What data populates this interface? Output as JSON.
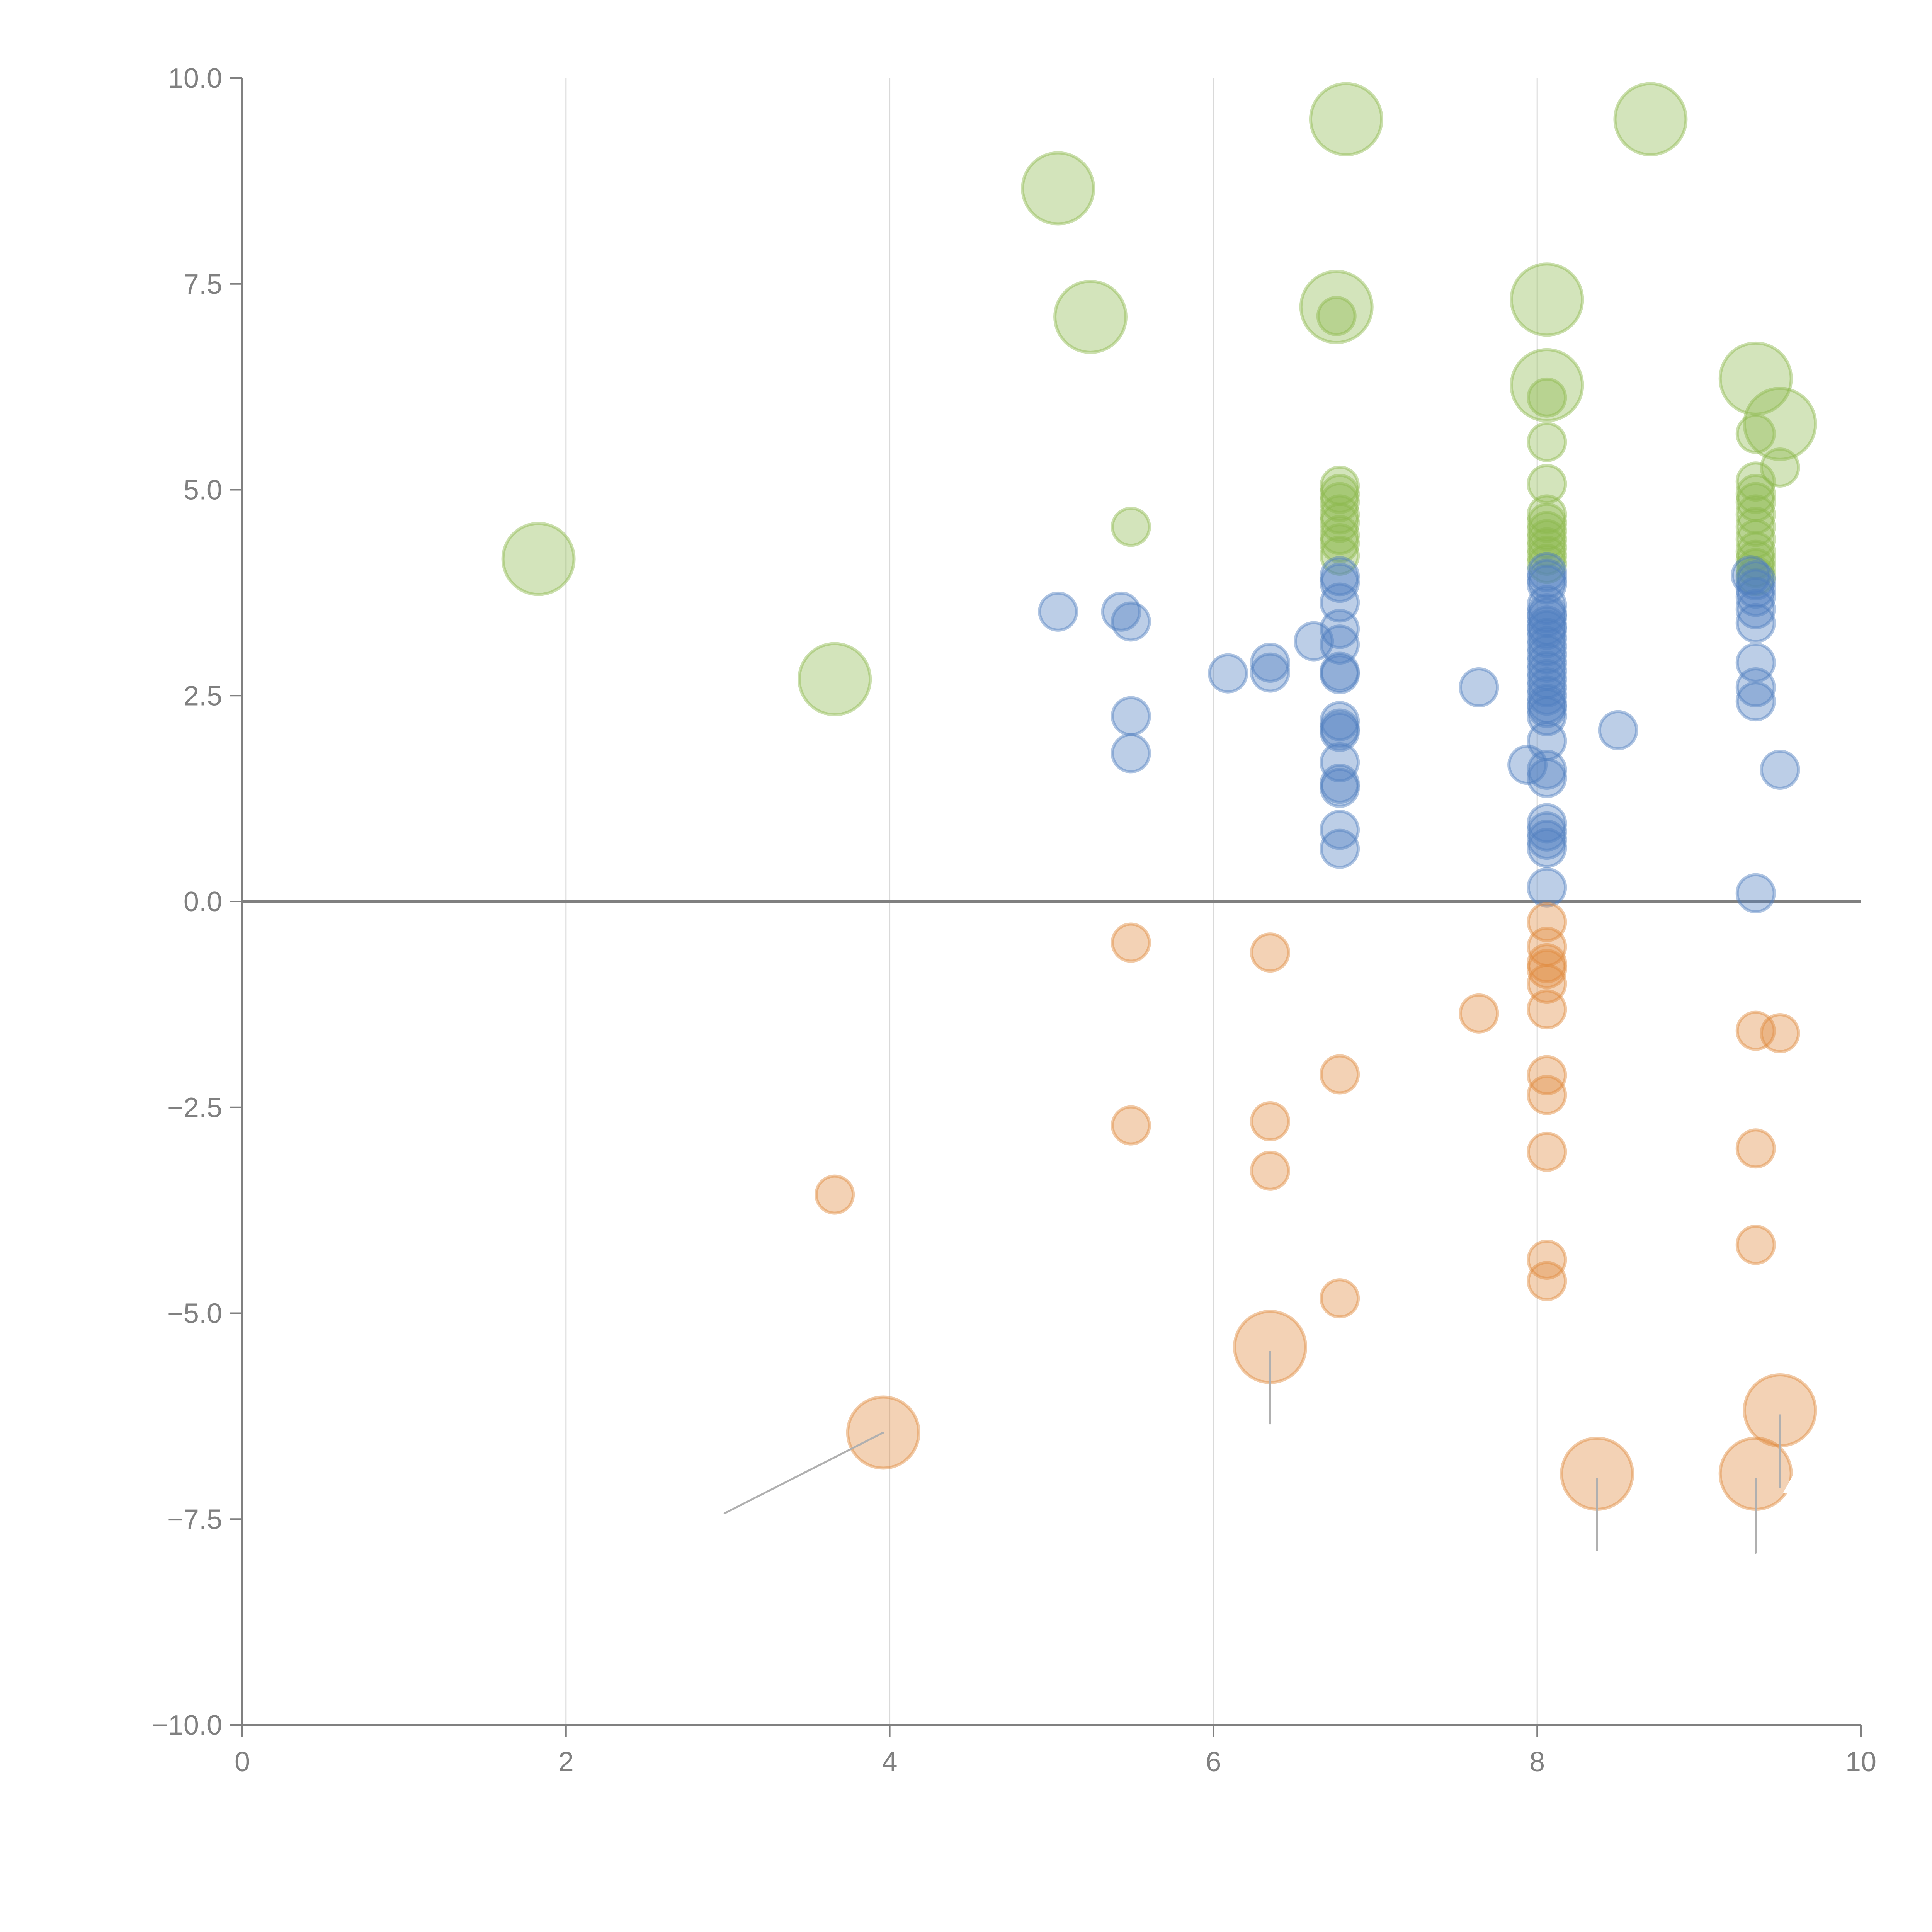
{
  "chart_data": {
    "type": "scatter",
    "title": "",
    "xlabel": "",
    "ylabel": "",
    "xlim": [
      0,
      10
    ],
    "ylim": [
      -10,
      10
    ],
    "x_ticks": [
      0,
      2,
      4,
      6,
      8,
      10
    ],
    "x_tick_labels": [
      "0",
      "2",
      "4",
      "6",
      "8",
      "10"
    ],
    "y_ticks": [
      10,
      7.5,
      5,
      2.5,
      0,
      -2.5,
      -5,
      -7.5,
      -10
    ],
    "y_tick_labels": [
      "10.0",
      "7.5",
      "5.0",
      "2.5",
      "0.0",
      "−2.5",
      "−5.0",
      "−7.5",
      "−10.0"
    ],
    "grid": "vertical",
    "reference_line_y": 0,
    "legend": "none",
    "annotations": [
      {
        "text": "A",
        "near": [
          9.5,
          -7.0
        ],
        "color": "#ffffff"
      }
    ],
    "series": [
      {
        "name": "green",
        "color": "#8cb84b",
        "points": [
          {
            "x": 1.83,
            "y": 4.16,
            "size": "large"
          },
          {
            "x": 3.66,
            "y": 2.7,
            "size": "large"
          },
          {
            "x": 5.04,
            "y": 8.66,
            "size": "large"
          },
          {
            "x": 5.24,
            "y": 7.1,
            "size": "large"
          },
          {
            "x": 6.82,
            "y": 9.5,
            "size": "large"
          },
          {
            "x": 6.76,
            "y": 7.22,
            "size": "large"
          },
          {
            "x": 8.06,
            "y": 7.31,
            "size": "large"
          },
          {
            "x": 8.06,
            "y": 6.27,
            "size": "large"
          },
          {
            "x": 8.7,
            "y": 9.5,
            "size": "large"
          },
          {
            "x": 9.35,
            "y": 6.35,
            "size": "large"
          },
          {
            "x": 9.5,
            "y": 5.8,
            "size": "large"
          },
          {
            "x": 6.76,
            "y": 7.11,
            "size": "small"
          },
          {
            "x": 8.06,
            "y": 6.12,
            "size": "small"
          },
          {
            "x": 9.35,
            "y": 5.68,
            "size": "small"
          },
          {
            "x": 9.5,
            "y": 5.27,
            "size": "small"
          },
          {
            "x": 5.49,
            "y": 4.55,
            "size": "small"
          },
          {
            "x": 8.06,
            "y": 5.58,
            "size": "small"
          },
          {
            "x": 8.06,
            "y": 5.07,
            "size": "small"
          },
          {
            "x": 8.06,
            "y": 4.7,
            "size": "small"
          },
          {
            "x": 8.06,
            "y": 4.6,
            "size": "small"
          },
          {
            "x": 8.06,
            "y": 4.5,
            "size": "small"
          },
          {
            "x": 8.06,
            "y": 4.4,
            "size": "small"
          },
          {
            "x": 8.06,
            "y": 4.3,
            "size": "small"
          },
          {
            "x": 8.06,
            "y": 4.2,
            "size": "small"
          },
          {
            "x": 8.06,
            "y": 4.1,
            "size": "small"
          },
          {
            "x": 6.78,
            "y": 5.05,
            "size": "small"
          },
          {
            "x": 6.78,
            "y": 4.95,
            "size": "small"
          },
          {
            "x": 6.78,
            "y": 4.85,
            "size": "small"
          },
          {
            "x": 6.78,
            "y": 4.7,
            "size": "small"
          },
          {
            "x": 6.78,
            "y": 4.6,
            "size": "small"
          },
          {
            "x": 6.78,
            "y": 4.45,
            "size": "small"
          },
          {
            "x": 6.78,
            "y": 4.35,
            "size": "small"
          },
          {
            "x": 6.78,
            "y": 4.2,
            "size": "small"
          },
          {
            "x": 9.35,
            "y": 5.1,
            "size": "small"
          },
          {
            "x": 9.35,
            "y": 4.95,
            "size": "small"
          },
          {
            "x": 9.35,
            "y": 4.85,
            "size": "small"
          },
          {
            "x": 9.35,
            "y": 4.7,
            "size": "small"
          },
          {
            "x": 9.35,
            "y": 4.55,
            "size": "small"
          },
          {
            "x": 9.35,
            "y": 4.4,
            "size": "small"
          },
          {
            "x": 9.35,
            "y": 4.25,
            "size": "small"
          },
          {
            "x": 9.35,
            "y": 4.15,
            "size": "small"
          },
          {
            "x": 9.35,
            "y": 4.05,
            "size": "small"
          },
          {
            "x": 9.35,
            "y": 3.95,
            "size": "small"
          }
        ]
      },
      {
        "name": "blue",
        "color": "#4f7fbf",
        "points": [
          {
            "x": 5.04,
            "y": 3.52,
            "size": "small"
          },
          {
            "x": 5.43,
            "y": 3.52,
            "size": "small"
          },
          {
            "x": 5.49,
            "y": 3.4,
            "size": "small"
          },
          {
            "x": 5.49,
            "y": 2.25,
            "size": "small"
          },
          {
            "x": 5.49,
            "y": 1.8,
            "size": "small"
          },
          {
            "x": 6.09,
            "y": 2.77,
            "size": "small"
          },
          {
            "x": 6.35,
            "y": 2.9,
            "size": "small"
          },
          {
            "x": 6.35,
            "y": 2.78,
            "size": "small"
          },
          {
            "x": 6.62,
            "y": 3.16,
            "size": "small"
          },
          {
            "x": 6.78,
            "y": 3.95,
            "size": "small"
          },
          {
            "x": 6.78,
            "y": 3.87,
            "size": "small"
          },
          {
            "x": 6.78,
            "y": 3.63,
            "size": "small"
          },
          {
            "x": 6.78,
            "y": 3.31,
            "size": "small"
          },
          {
            "x": 6.78,
            "y": 3.12,
            "size": "small"
          },
          {
            "x": 6.78,
            "y": 2.79,
            "size": "small"
          },
          {
            "x": 6.78,
            "y": 2.76,
            "size": "small"
          },
          {
            "x": 6.78,
            "y": 2.19,
            "size": "small"
          },
          {
            "x": 6.78,
            "y": 2.1,
            "size": "small"
          },
          {
            "x": 6.78,
            "y": 2.06,
            "size": "small"
          },
          {
            "x": 6.78,
            "y": 1.69,
            "size": "small"
          },
          {
            "x": 6.78,
            "y": 1.43,
            "size": "small"
          },
          {
            "x": 6.78,
            "y": 1.38,
            "size": "small"
          },
          {
            "x": 6.78,
            "y": 0.87,
            "size": "small"
          },
          {
            "x": 6.78,
            "y": 0.64,
            "size": "small"
          },
          {
            "x": 7.64,
            "y": 2.6,
            "size": "small"
          },
          {
            "x": 7.94,
            "y": 1.66,
            "size": "small"
          },
          {
            "x": 8.06,
            "y": 4.0,
            "size": "small"
          },
          {
            "x": 8.06,
            "y": 3.92,
            "size": "small"
          },
          {
            "x": 8.06,
            "y": 3.85,
            "size": "small"
          },
          {
            "x": 8.06,
            "y": 3.6,
            "size": "small"
          },
          {
            "x": 8.06,
            "y": 3.5,
            "size": "small"
          },
          {
            "x": 8.06,
            "y": 3.45,
            "size": "small"
          },
          {
            "x": 8.06,
            "y": 3.35,
            "size": "small"
          },
          {
            "x": 8.06,
            "y": 3.3,
            "size": "small"
          },
          {
            "x": 8.06,
            "y": 3.2,
            "size": "small"
          },
          {
            "x": 8.06,
            "y": 3.1,
            "size": "small"
          },
          {
            "x": 8.06,
            "y": 3.0,
            "size": "small"
          },
          {
            "x": 8.06,
            "y": 2.9,
            "size": "small"
          },
          {
            "x": 8.06,
            "y": 2.8,
            "size": "small"
          },
          {
            "x": 8.06,
            "y": 2.7,
            "size": "small"
          },
          {
            "x": 8.06,
            "y": 2.6,
            "size": "small"
          },
          {
            "x": 8.06,
            "y": 2.5,
            "size": "small"
          },
          {
            "x": 8.06,
            "y": 2.4,
            "size": "small"
          },
          {
            "x": 8.06,
            "y": 2.35,
            "size": "small"
          },
          {
            "x": 8.06,
            "y": 2.25,
            "size": "small"
          },
          {
            "x": 8.06,
            "y": 1.95,
            "size": "small"
          },
          {
            "x": 8.06,
            "y": 1.6,
            "size": "small"
          },
          {
            "x": 8.06,
            "y": 1.5,
            "size": "small"
          },
          {
            "x": 8.06,
            "y": 0.95,
            "size": "small"
          },
          {
            "x": 8.06,
            "y": 0.85,
            "size": "small"
          },
          {
            "x": 8.06,
            "y": 0.75,
            "size": "small"
          },
          {
            "x": 8.06,
            "y": 0.65,
            "size": "small"
          },
          {
            "x": 8.06,
            "y": 0.17,
            "size": "small"
          },
          {
            "x": 8.5,
            "y": 2.08,
            "size": "small"
          },
          {
            "x": 9.32,
            "y": 3.96,
            "size": "small"
          },
          {
            "x": 9.35,
            "y": 3.9,
            "size": "small"
          },
          {
            "x": 9.35,
            "y": 3.8,
            "size": "small"
          },
          {
            "x": 9.35,
            "y": 3.7,
            "size": "small"
          },
          {
            "x": 9.35,
            "y": 3.55,
            "size": "small"
          },
          {
            "x": 9.35,
            "y": 3.38,
            "size": "small"
          },
          {
            "x": 9.35,
            "y": 2.9,
            "size": "small"
          },
          {
            "x": 9.35,
            "y": 2.6,
            "size": "small"
          },
          {
            "x": 9.35,
            "y": 2.43,
            "size": "small"
          },
          {
            "x": 9.35,
            "y": 0.1,
            "size": "small"
          },
          {
            "x": 9.5,
            "y": 1.6,
            "size": "small"
          }
        ]
      },
      {
        "name": "orange",
        "color": "#e08a3c",
        "points": [
          {
            "x": 3.66,
            "y": -3.56,
            "size": "small"
          },
          {
            "x": 5.49,
            "y": -0.5,
            "size": "small"
          },
          {
            "x": 5.49,
            "y": -2.72,
            "size": "small"
          },
          {
            "x": 6.35,
            "y": -0.62,
            "size": "small"
          },
          {
            "x": 6.35,
            "y": -2.67,
            "size": "small"
          },
          {
            "x": 6.35,
            "y": -3.27,
            "size": "small"
          },
          {
            "x": 6.78,
            "y": -2.1,
            "size": "small"
          },
          {
            "x": 6.78,
            "y": -4.82,
            "size": "small"
          },
          {
            "x": 7.64,
            "y": -1.36,
            "size": "small"
          },
          {
            "x": 8.06,
            "y": -0.25,
            "size": "small"
          },
          {
            "x": 8.06,
            "y": -0.55,
            "size": "small"
          },
          {
            "x": 8.06,
            "y": -0.75,
            "size": "small"
          },
          {
            "x": 8.06,
            "y": -0.82,
            "size": "small"
          },
          {
            "x": 8.06,
            "y": -1.0,
            "size": "small"
          },
          {
            "x": 8.06,
            "y": -1.31,
            "size": "small"
          },
          {
            "x": 8.06,
            "y": -2.11,
            "size": "small"
          },
          {
            "x": 8.06,
            "y": -2.35,
            "size": "small"
          },
          {
            "x": 8.06,
            "y": -3.04,
            "size": "small"
          },
          {
            "x": 8.06,
            "y": -4.35,
            "size": "small"
          },
          {
            "x": 8.06,
            "y": -4.61,
            "size": "small"
          },
          {
            "x": 9.35,
            "y": -1.57,
            "size": "small"
          },
          {
            "x": 9.35,
            "y": -3.0,
            "size": "small"
          },
          {
            "x": 9.35,
            "y": -4.17,
            "size": "small"
          },
          {
            "x": 9.5,
            "y": -1.6,
            "size": "small"
          },
          {
            "x": 3.96,
            "y": -6.45,
            "size": "large"
          },
          {
            "x": 6.35,
            "y": -5.41,
            "size": "large"
          },
          {
            "x": 8.37,
            "y": -6.95,
            "size": "large"
          },
          {
            "x": 9.35,
            "y": -6.95,
            "size": "large"
          },
          {
            "x": 9.5,
            "y": -6.18,
            "size": "large"
          }
        ]
      }
    ],
    "leader_lines": [
      {
        "from": [
          3.96,
          -6.45
        ],
        "to": [
          2.98,
          -7.43
        ]
      },
      {
        "from": [
          6.35,
          -5.47
        ],
        "to": [
          6.35,
          -6.34
        ]
      },
      {
        "from": [
          8.37,
          -7.01
        ],
        "to": [
          8.37,
          -7.88
        ]
      },
      {
        "from": [
          9.35,
          -7.01
        ],
        "to": [
          9.35,
          -7.91
        ]
      },
      {
        "from": [
          9.5,
          -6.24
        ],
        "to": [
          9.5,
          -7.11
        ]
      }
    ]
  }
}
